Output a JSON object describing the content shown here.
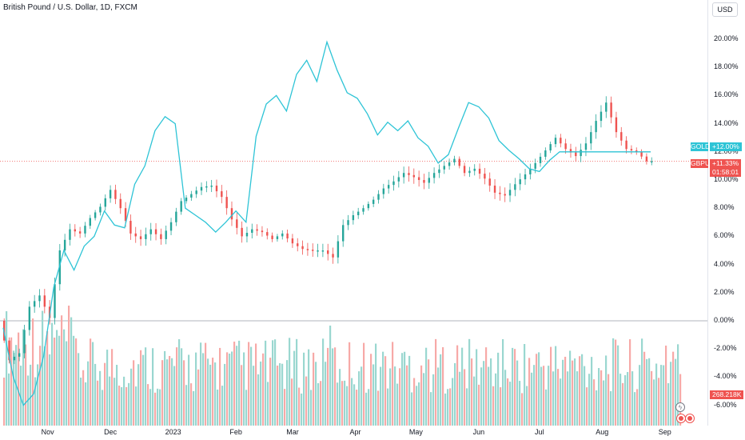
{
  "header": {
    "title": "British Pound / U.S. Dollar, 1D, FXCM",
    "currency": "USD"
  },
  "colors": {
    "up": "#26a69a",
    "down": "#ef5350",
    "gold_line": "#2ec4d6",
    "vol_up": "#9ad7d0",
    "vol_down": "#f7a9a7",
    "zero_line": "#b2b5be",
    "price_line": "#ef5350"
  },
  "y_axis": {
    "ticks": [
      "20.00%",
      "18.00%",
      "16.00%",
      "14.00%",
      "12.00%",
      "10.00%",
      "8.00%",
      "6.00%",
      "4.00%",
      "2.00%",
      "0.00%",
      "-2.00%",
      "-4.00%",
      "-6.00%"
    ],
    "tick_values": [
      20,
      18,
      16,
      14,
      12,
      10,
      8,
      6,
      4,
      2,
      0,
      -2,
      -4,
      -6
    ]
  },
  "x_axis": {
    "ticks": [
      "Nov",
      "Dec",
      "2023",
      "Feb",
      "Mar",
      "Apr",
      "May",
      "Jun",
      "Jul",
      "Aug",
      "Sep"
    ],
    "tick_day_index": [
      22,
      53,
      84,
      115,
      143,
      174,
      204,
      235,
      265,
      296,
      327
    ]
  },
  "badges": {
    "gold": {
      "symbol": "GOLD",
      "value": "+12.00%",
      "color": "#2ec4d6"
    },
    "gbpusd": {
      "symbol": "GBPUSD",
      "value": "+11.33%",
      "countdown": "01:58:01",
      "color": "#ef5350"
    },
    "volume": {
      "value": "268.218K"
    }
  },
  "icons": {
    "lightning": "lightning-icon",
    "flag": "flag-icon"
  },
  "chart_data": {
    "type": "line",
    "x_unit": "days since 2022-10-01",
    "y_unit": "percent change",
    "ylim": [
      -7,
      21
    ],
    "xlim": [
      0,
      335
    ],
    "series": [
      {
        "name": "GBPUSD",
        "style": "candlestick",
        "x": [
          0,
          5,
          10,
          15,
          20,
          25,
          30,
          35,
          40,
          45,
          50,
          55,
          60,
          65,
          70,
          75,
          80,
          85,
          90,
          95,
          100,
          105,
          110,
          115,
          120,
          125,
          130,
          135,
          140,
          145,
          150,
          155,
          160,
          165,
          170,
          175,
          180,
          185,
          190,
          195,
          200,
          205,
          210,
          215,
          220,
          225,
          230,
          235,
          240,
          245,
          250,
          255,
          260,
          265,
          270,
          275,
          280,
          285,
          290,
          295,
          300,
          305,
          310,
          315,
          320
        ],
        "y": [
          0,
          -2.8,
          -2.3,
          1.0,
          1.8,
          0.2,
          5.0,
          6.5,
          6.2,
          7.3,
          8.1,
          9.3,
          8.0,
          6.2,
          5.8,
          6.5,
          5.8,
          7.0,
          8.5,
          9.0,
          9.5,
          9.6,
          8.8,
          7.2,
          6.0,
          6.5,
          6.3,
          5.8,
          6.2,
          5.5,
          5.1,
          5.0,
          5.0,
          4.5,
          6.8,
          7.5,
          8.0,
          8.6,
          9.4,
          9.9,
          10.5,
          10.2,
          9.8,
          10.5,
          11.0,
          11.5,
          10.5,
          10.8,
          10.1,
          9.1,
          8.9,
          9.7,
          10.4,
          11.2,
          12.1,
          13.0,
          12.2,
          11.7,
          12.6,
          14.2,
          15.5,
          13.4,
          12.2,
          12.0,
          11.33
        ]
      },
      {
        "name": "GOLD",
        "x": [
          0,
          5,
          10,
          15,
          20,
          25,
          30,
          35,
          40,
          45,
          50,
          55,
          60,
          65,
          70,
          75,
          80,
          85,
          90,
          95,
          100,
          105,
          110,
          115,
          120,
          125,
          130,
          135,
          140,
          145,
          150,
          155,
          160,
          165,
          170,
          175,
          180,
          185,
          190,
          195,
          200,
          205,
          210,
          215,
          220,
          225,
          230,
          235,
          240,
          245,
          250,
          255,
          260,
          265,
          270,
          275,
          280,
          285,
          290,
          295,
          300,
          305,
          310,
          315,
          320
        ],
        "y": [
          -0.5,
          -4.0,
          -6.0,
          -5.2,
          -2.5,
          2.4,
          5.0,
          3.6,
          5.3,
          6.0,
          7.8,
          6.8,
          6.6,
          9.7,
          11.0,
          13.5,
          14.5,
          14.0,
          8.0,
          7.5,
          7.0,
          6.3,
          7.0,
          7.8,
          7.0,
          13.1,
          15.4,
          16.0,
          14.9,
          17.5,
          18.5,
          17.0,
          19.8,
          17.8,
          16.2,
          15.8,
          14.7,
          13.2,
          14.1,
          13.5,
          14.2,
          13.0,
          12.4,
          11.2,
          11.8,
          13.7,
          15.5,
          15.2,
          14.4,
          12.8,
          12.1,
          11.5,
          10.8,
          10.6,
          11.4,
          12.0,
          12.0,
          12.0,
          12.0,
          12.0,
          12.0,
          12.0,
          12.0,
          12.0,
          12.0
        ]
      }
    ],
    "volume": {
      "unit": "lots",
      "last": "268.218K"
    }
  }
}
